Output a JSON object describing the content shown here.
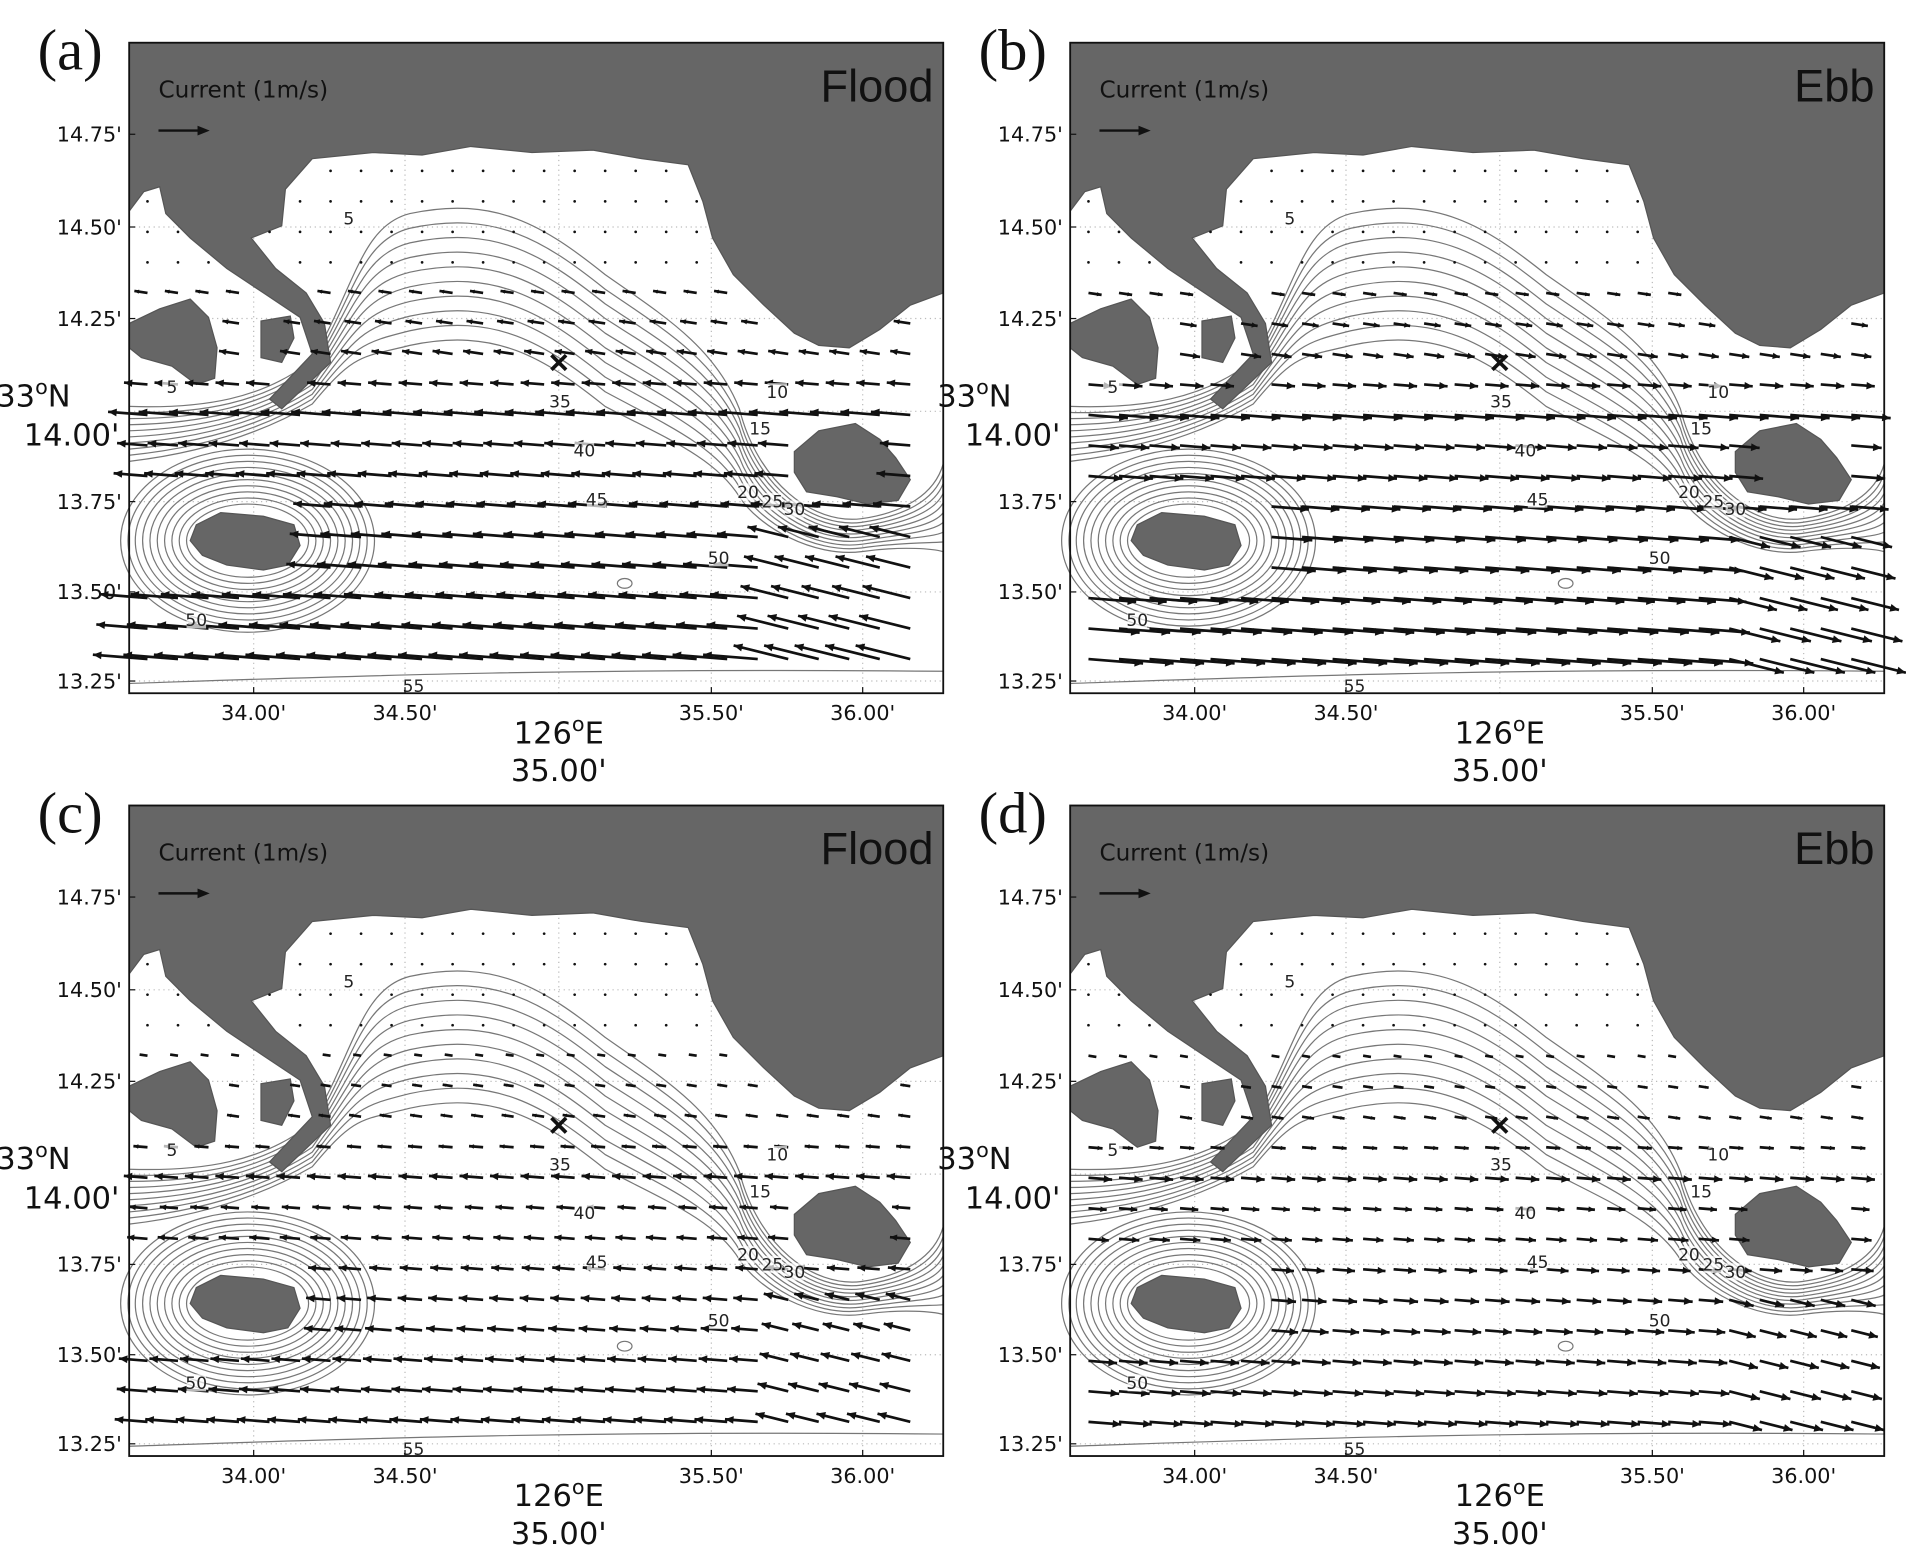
{
  "panels": [
    {
      "label": "(a)",
      "title": "Flood",
      "legend": "Current (1m/s)",
      "yticks": [
        "14.75'",
        "14.50'",
        "14.25'",
        "13.75'",
        "13.50'",
        "13.25'"
      ],
      "lat_label": {
        "degrees": "33",
        "sup": "o",
        "hemi": "N",
        "minutes": "14.00'"
      },
      "xticks": [
        "34.00'",
        "34.50'",
        "35.50'",
        "36.00'"
      ],
      "lon_label": {
        "degrees": "126",
        "sup": "o",
        "hemi": "E",
        "minutes": "35.00'"
      },
      "contour_labels": [
        "5",
        "10",
        "15",
        "20",
        "25",
        "30",
        "35",
        "40",
        "45",
        "50",
        "55",
        "5",
        "50"
      ]
    },
    {
      "label": "(b)",
      "title": "Ebb",
      "legend": "Current (1m/s)",
      "yticks": [
        "14.75'",
        "14.50'",
        "14.25'",
        "13.75'",
        "13.50'",
        "13.25'"
      ],
      "lat_label": {
        "degrees": "33",
        "sup": "o",
        "hemi": "N",
        "minutes": "14.00'"
      },
      "xticks": [
        "34.00'",
        "34.50'",
        "35.50'",
        "36.00'"
      ],
      "lon_label": {
        "degrees": "126",
        "sup": "o",
        "hemi": "E",
        "minutes": "35.00'"
      },
      "contour_labels": [
        "5",
        "10",
        "15",
        "20",
        "25",
        "30",
        "35",
        "40",
        "45",
        "50",
        "55",
        "5",
        "50"
      ]
    },
    {
      "label": "(c)",
      "title": "Flood",
      "legend": "Current (1m/s)",
      "yticks": [
        "14.75'",
        "14.50'",
        "14.25'",
        "13.75'",
        "13.50'",
        "13.25'"
      ],
      "lat_label": {
        "degrees": "33",
        "sup": "o",
        "hemi": "N",
        "minutes": "14.00'"
      },
      "xticks": [
        "34.00'",
        "34.50'",
        "35.50'",
        "36.00'"
      ],
      "lon_label": {
        "degrees": "126",
        "sup": "o",
        "hemi": "E",
        "minutes": "35.00'"
      },
      "contour_labels": [
        "5",
        "10",
        "15",
        "20",
        "25",
        "30",
        "35",
        "40",
        "45",
        "50",
        "55",
        "5",
        "50"
      ]
    },
    {
      "label": "(d)",
      "title": "Ebb",
      "legend": "Current (1m/s)",
      "yticks": [
        "14.75'",
        "14.50'",
        "14.25'",
        "13.75'",
        "13.50'",
        "13.25'"
      ],
      "lat_label": {
        "degrees": "33",
        "sup": "o",
        "hemi": "N",
        "minutes": "14.00'"
      },
      "xticks": [
        "34.00'",
        "34.50'",
        "35.50'",
        "36.00'"
      ],
      "lon_label": {
        "degrees": "126",
        "sup": "o",
        "hemi": "E",
        "minutes": "35.00'"
      },
      "contour_labels": [
        "5",
        "10",
        "15",
        "20",
        "25",
        "30",
        "35",
        "40",
        "45",
        "50",
        "55",
        "5",
        "50"
      ]
    }
  ]
}
